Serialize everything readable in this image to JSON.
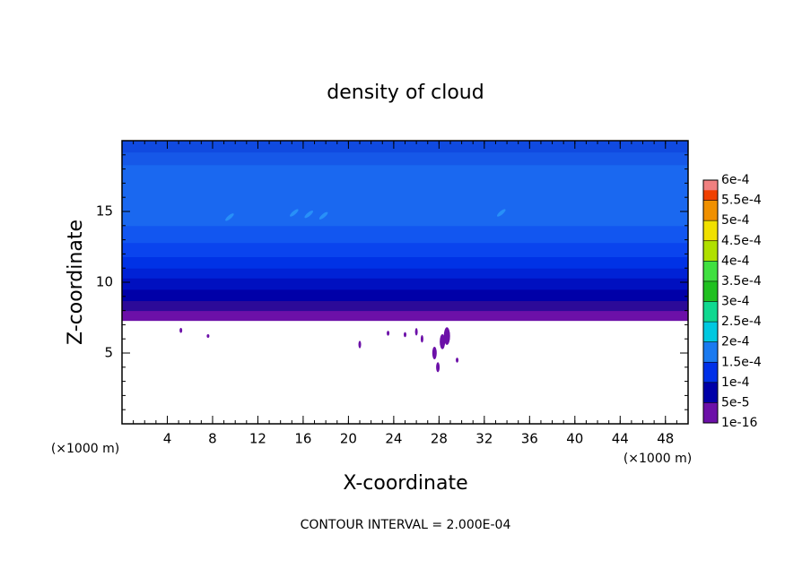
{
  "chart_data": {
    "type": "contour",
    "title": "density of cloud",
    "x_label": "X-coordinate",
    "y_label": "Z-coordinate",
    "x_unit": "(×1000 m)",
    "y_unit": "(×1000 m)",
    "note": "CONTOUR INTERVAL = 2.000E-04",
    "xlim": [
      0,
      50
    ],
    "ylim": [
      0,
      20
    ],
    "xticks": [
      4,
      8,
      12,
      16,
      20,
      24,
      28,
      32,
      36,
      40,
      44,
      48
    ],
    "yticks": [
      5,
      10,
      15
    ],
    "layers": [
      {
        "zlim": [
          7.3,
          8.0
        ],
        "color": "#6c10a8"
      },
      {
        "zlim": [
          8.0,
          8.7
        ],
        "color": "#2c0a98"
      },
      {
        "zlim": [
          8.7,
          9.5
        ],
        "color": "#0000a8"
      },
      {
        "zlim": [
          9.5,
          10.3
        ],
        "color": "#0010c0"
      },
      {
        "zlim": [
          10.3,
          11.0
        ],
        "color": "#0022d6"
      },
      {
        "zlim": [
          11.0,
          11.8
        ],
        "color": "#0032e6"
      },
      {
        "zlim": [
          11.8,
          12.8
        ],
        "color": "#0a44ee"
      },
      {
        "zlim": [
          12.8,
          14.0
        ],
        "color": "#1256f0"
      },
      {
        "zlim": [
          14.0,
          18.3
        ],
        "color": "#1a68f0"
      },
      {
        "zlim": [
          18.3,
          19.2
        ],
        "color": "#1658e8"
      },
      {
        "zlim": [
          19.2,
          20.0
        ],
        "color": "#104ae0"
      }
    ],
    "blobs": {
      "color": "#6c10a8",
      "x": [
        5.2,
        7.6,
        21.0,
        23.5,
        25.0,
        26.5,
        27.6,
        27.9,
        28.3,
        28.7,
        29.6,
        26.0
      ],
      "z": [
        6.6,
        6.2,
        5.6,
        6.4,
        6.3,
        6.0,
        5.0,
        4.0,
        5.8,
        6.2,
        4.5,
        6.5
      ],
      "size": [
        0.2,
        0.1,
        0.3,
        0.2,
        0.2,
        0.3,
        0.5,
        0.4,
        0.6,
        0.7,
        0.2,
        0.3
      ]
    },
    "streaks": {
      "color": "#2890f8",
      "x": [
        9.5,
        15.2,
        16.5,
        17.8,
        33.5
      ],
      "z": [
        14.6,
        14.9,
        14.8,
        14.7,
        14.9
      ]
    },
    "colorbar": {
      "ticks": [
        {
          "value": 1e-16,
          "label": "1e-16"
        },
        {
          "value": 5e-05,
          "label": "5e-5"
        },
        {
          "value": 0.0001,
          "label": "1e-4"
        },
        {
          "value": 0.00015,
          "label": "1.5e-4"
        },
        {
          "value": 0.0002,
          "label": "2e-4"
        },
        {
          "value": 0.00025,
          "label": "2.5e-4"
        },
        {
          "value": 0.0003,
          "label": "3e-4"
        },
        {
          "value": 0.00035,
          "label": "3.5e-4"
        },
        {
          "value": 0.0004,
          "label": "4e-4"
        },
        {
          "value": 0.00045,
          "label": "4.5e-4"
        },
        {
          "value": 0.0005,
          "label": "5e-4"
        },
        {
          "value": 0.00055,
          "label": "5.5e-4"
        },
        {
          "value": 0.0006,
          "label": "6e-4"
        }
      ],
      "colors": [
        "#6c10a8",
        "#0000a8",
        "#0030e8",
        "#1a7af0",
        "#00c8e0",
        "#10d890",
        "#20c020",
        "#40e040",
        "#b0e000",
        "#f0e000",
        "#f09000",
        "#f04000"
      ],
      "top_color": "#f08080"
    }
  }
}
